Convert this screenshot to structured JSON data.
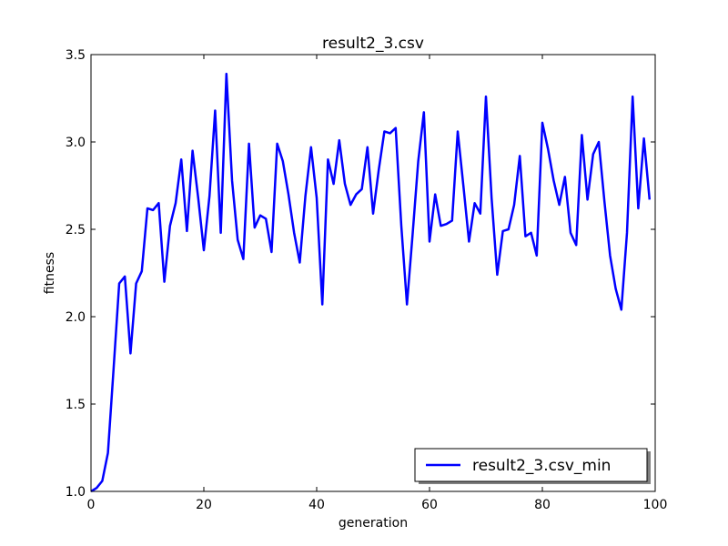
{
  "chart_data": {
    "type": "line",
    "title": "result2_3.csv",
    "xlabel": "generation",
    "ylabel": "fitness",
    "xlim": [
      0,
      100
    ],
    "ylim": [
      1.0,
      3.5
    ],
    "xticks": [
      0,
      20,
      40,
      60,
      80,
      100
    ],
    "xtick_labels": [
      "0",
      "20",
      "40",
      "60",
      "80",
      "100"
    ],
    "yticks": [
      1.0,
      1.5,
      2.0,
      2.5,
      3.0,
      3.5
    ],
    "ytick_labels": [
      "1.0",
      "1.5",
      "2.0",
      "2.5",
      "3.0",
      "3.5"
    ],
    "grid": false,
    "legend_position": "lower-right",
    "series": [
      {
        "name": "result2_3.csv_min",
        "color": "#0000ff",
        "x": [
          0,
          1,
          2,
          3,
          4,
          5,
          6,
          7,
          8,
          9,
          10,
          11,
          12,
          13,
          14,
          15,
          16,
          17,
          18,
          19,
          20,
          21,
          22,
          23,
          24,
          25,
          26,
          27,
          28,
          29,
          30,
          31,
          32,
          33,
          34,
          35,
          36,
          37,
          38,
          39,
          40,
          41,
          42,
          43,
          44,
          45,
          46,
          47,
          48,
          49,
          50,
          51,
          52,
          53,
          54,
          55,
          56,
          57,
          58,
          59,
          60,
          61,
          62,
          63,
          64,
          65,
          66,
          67,
          68,
          69,
          70,
          71,
          72,
          73,
          74,
          75,
          76,
          77,
          78,
          79,
          80,
          81,
          82,
          83,
          84,
          85,
          86,
          87,
          88,
          89,
          90,
          91,
          92,
          93,
          94,
          95,
          96,
          97,
          98,
          99
        ],
        "values": [
          1.0,
          1.02,
          1.06,
          1.22,
          1.7,
          2.19,
          2.23,
          1.79,
          2.19,
          2.26,
          2.62,
          2.61,
          2.65,
          2.2,
          2.52,
          2.65,
          2.9,
          2.49,
          2.95,
          2.68,
          2.38,
          2.69,
          3.18,
          2.48,
          3.39,
          2.78,
          2.44,
          2.33,
          2.99,
          2.51,
          2.58,
          2.56,
          2.37,
          2.99,
          2.89,
          2.7,
          2.48,
          2.31,
          2.69,
          2.97,
          2.68,
          2.07,
          2.9,
          2.76,
          3.01,
          2.76,
          2.64,
          2.7,
          2.73,
          2.97,
          2.59,
          2.84,
          3.06,
          3.05,
          3.08,
          2.52,
          2.07,
          2.47,
          2.89,
          3.17,
          2.43,
          2.7,
          2.52,
          2.53,
          2.55,
          3.06,
          2.75,
          2.43,
          2.65,
          2.59,
          3.26,
          2.68,
          2.24,
          2.49,
          2.5,
          2.64,
          2.92,
          2.46,
          2.48,
          2.35,
          3.11,
          2.96,
          2.78,
          2.64,
          2.8,
          2.48,
          2.41,
          3.04,
          2.67,
          2.93,
          3.0,
          2.66,
          2.35,
          2.16,
          2.04,
          2.48,
          3.26,
          2.62,
          3.02,
          2.67
        ]
      }
    ]
  }
}
